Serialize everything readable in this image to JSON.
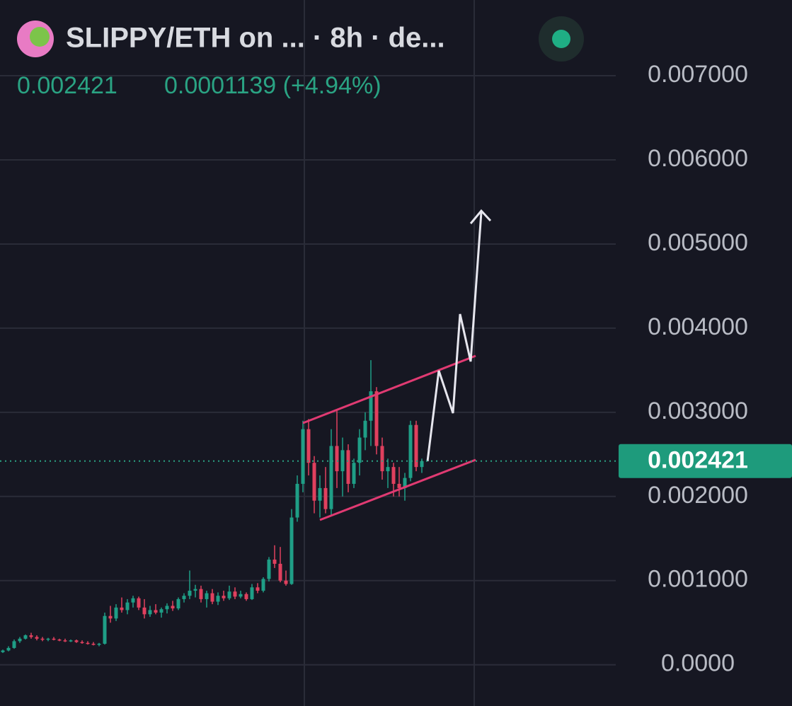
{
  "chart_data": {
    "type": "candlestick",
    "title": "SLIPPY/ETH on ... · 8h · de...",
    "change": "0.0001139 (+4.94%)",
    "last_price": {
      "value": 0.002421,
      "label": "0.002421"
    },
    "up_color": "#1f9e86",
    "down_color": "#e0405e",
    "ylim": [
      -0.00049,
      0.0079
    ],
    "yticks": [
      {
        "value": 0,
        "label": "0.0000"
      },
      {
        "value": 0.001,
        "label": "0.001000"
      },
      {
        "value": 0.002,
        "label": "0.002000"
      },
      {
        "value": 0.003,
        "label": "0.003000"
      },
      {
        "value": 0.004,
        "label": "0.004000"
      },
      {
        "value": 0.005,
        "label": "0.005000"
      },
      {
        "value": 0.006,
        "label": "0.006000"
      },
      {
        "value": 0.007,
        "label": "0.007000"
      }
    ],
    "grid": true,
    "open": [
      0.00015,
      0.00017,
      0.0002,
      0.00028,
      0.00031,
      0.00035,
      0.00033,
      0.00031,
      0.0003,
      0.00031,
      0.0003,
      0.00029,
      0.00028,
      0.00029,
      0.00027,
      0.00026,
      0.00025,
      0.00024,
      0.00025,
      0.00058,
      0.00055,
      0.00068,
      0.00065,
      0.00074,
      0.00079,
      0.00068,
      0.0006,
      0.00065,
      0.00062,
      0.00066,
      0.0007,
      0.00067,
      0.00078,
      0.00082,
      0.00088,
      0.0009,
      0.00078,
      0.00085,
      0.00075,
      0.00082,
      0.00079,
      0.00087,
      0.00081,
      0.00084,
      0.00078,
      0.00092,
      0.00088,
      0.00102,
      0.00125,
      0.0012,
      0.001,
      0.00096,
      0.00175,
      0.00215,
      0.0028,
      0.0024,
      0.00195,
      0.0021,
      0.00185,
      0.0026,
      0.0023,
      0.00255,
      0.00215,
      0.0024,
      0.0027,
      0.0029,
      0.00325,
      0.0026,
      0.0023,
      0.00235,
      0.00215,
      0.0021,
      0.00222,
      0.00285,
      0.00235
    ],
    "high": [
      0.00018,
      0.00022,
      0.0003,
      0.00033,
      0.00036,
      0.00038,
      0.00035,
      0.00033,
      0.00032,
      0.00033,
      0.00031,
      0.00031,
      0.0003,
      0.0003,
      0.00029,
      0.00028,
      0.00027,
      0.00026,
      0.00062,
      0.0007,
      0.00072,
      0.0008,
      0.00078,
      0.00082,
      0.00081,
      0.00078,
      0.0007,
      0.00072,
      0.00068,
      0.00073,
      0.00076,
      0.0008,
      0.00085,
      0.00112,
      0.00095,
      0.00094,
      0.00088,
      0.0009,
      0.00086,
      0.00088,
      0.00094,
      0.00092,
      0.00088,
      0.00086,
      0.00096,
      0.00097,
      0.00104,
      0.00128,
      0.00142,
      0.0014,
      0.00112,
      0.00185,
      0.00225,
      0.0029,
      0.00292,
      0.00248,
      0.00225,
      0.00235,
      0.0028,
      0.00302,
      0.0027,
      0.00262,
      0.00245,
      0.0028,
      0.003,
      0.00362,
      0.0033,
      0.0027,
      0.00245,
      0.0024,
      0.00235,
      0.00228,
      0.0029,
      0.0029,
      0.00245
    ],
    "low": [
      0.00014,
      0.00016,
      0.00019,
      0.00026,
      0.0003,
      0.00031,
      0.00029,
      0.00028,
      0.00028,
      0.00029,
      0.00028,
      0.00027,
      0.00027,
      0.00026,
      0.00025,
      0.00024,
      0.00023,
      0.00022,
      0.00024,
      0.0005,
      0.00052,
      0.00062,
      0.0006,
      0.00068,
      0.00065,
      0.00055,
      0.00057,
      0.0006,
      0.00056,
      0.00061,
      0.00064,
      0.00065,
      0.00074,
      0.00078,
      0.0008,
      0.00074,
      0.00068,
      0.00072,
      0.00071,
      0.00076,
      0.00077,
      0.00078,
      0.00079,
      0.00076,
      0.00077,
      0.00085,
      0.00086,
      0.00099,
      0.00115,
      0.00098,
      0.00094,
      0.00095,
      0.0017,
      0.00205,
      0.00225,
      0.0018,
      0.00175,
      0.0018,
      0.00178,
      0.0021,
      0.002,
      0.00205,
      0.0021,
      0.00225,
      0.00255,
      0.0026,
      0.0025,
      0.0022,
      0.0021,
      0.002,
      0.002,
      0.00195,
      0.00218,
      0.0023,
      0.00228
    ],
    "close": [
      0.00017,
      0.0002,
      0.00028,
      0.00031,
      0.00035,
      0.00033,
      0.00031,
      0.0003,
      0.00031,
      0.0003,
      0.00029,
      0.00028,
      0.00029,
      0.00027,
      0.00026,
      0.00025,
      0.00024,
      0.00025,
      0.00058,
      0.00055,
      0.00068,
      0.00065,
      0.00074,
      0.00079,
      0.00068,
      0.0006,
      0.00065,
      0.00062,
      0.00066,
      0.0007,
      0.00067,
      0.00078,
      0.00082,
      0.00088,
      0.0009,
      0.00078,
      0.00085,
      0.00075,
      0.00082,
      0.00079,
      0.00087,
      0.00081,
      0.00084,
      0.00078,
      0.00092,
      0.00088,
      0.00102,
      0.00125,
      0.0012,
      0.001,
      0.00096,
      0.00175,
      0.00215,
      0.0028,
      0.0024,
      0.00195,
      0.0021,
      0.00185,
      0.0026,
      0.0023,
      0.00255,
      0.00215,
      0.0024,
      0.0027,
      0.0029,
      0.00325,
      0.0026,
      0.0023,
      0.00235,
      0.00215,
      0.0021,
      0.00222,
      0.00285,
      0.00235,
      0.00242
    ]
  }
}
